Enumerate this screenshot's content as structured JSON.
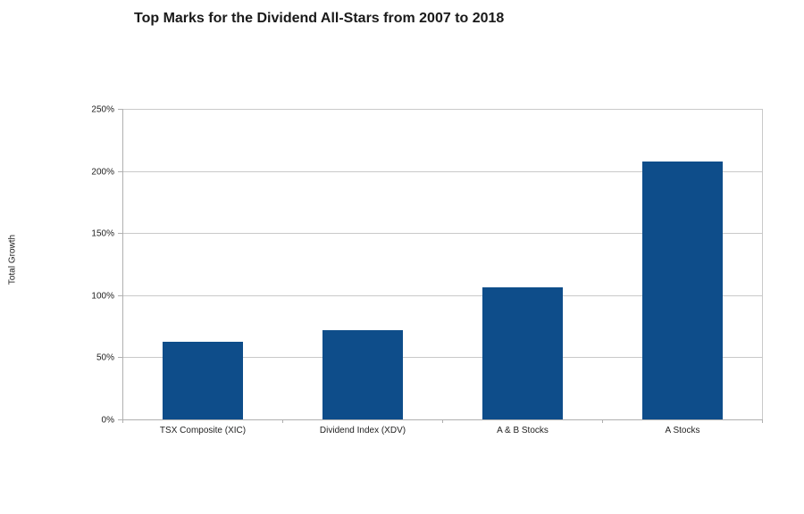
{
  "chart_data": {
    "type": "bar",
    "title": "Top Marks for the Dividend All-Stars from 2007 to 2018",
    "ylabel": "Total Growth",
    "xlabel": "",
    "categories": [
      "TSX Composite (XIC)",
      "Dividend Index (XDV)",
      "A & B Stocks",
      "A Stocks"
    ],
    "values": [
      62.5,
      72,
      106.5,
      207.5
    ],
    "value_unit": "%",
    "ylim": [
      0,
      250
    ],
    "ytick_step": 50,
    "ytick_labels": [
      "0%",
      "50%",
      "100%",
      "150%",
      "200%",
      "250%"
    ],
    "grid": "horizontal gridlines on",
    "legend": "none",
    "colors": {
      "bar": "#0E4D8A",
      "gridline": "#C9C9C9",
      "axis": "#B0B0B0",
      "text": "#222222",
      "title": "#1A1A1A",
      "background": "#FFFFFF"
    }
  }
}
